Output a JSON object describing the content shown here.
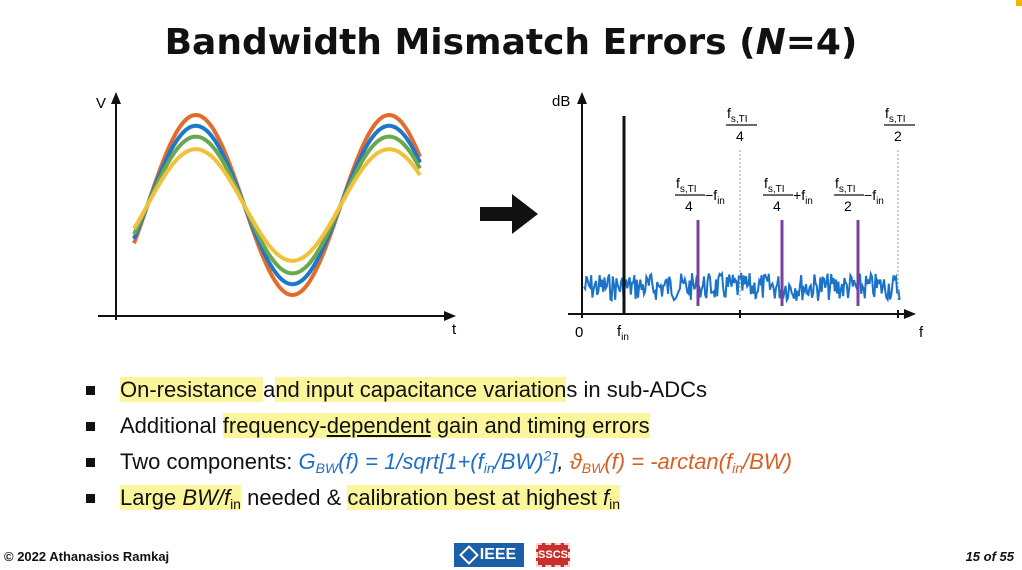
{
  "slide": {
    "title": "Bandwidth Mismatch Errors (N=4)",
    "title_parts": [
      "Bandwidth Mismatch Errors (",
      "N",
      "=4)"
    ]
  },
  "left_plot": {
    "y_axis_label": "V",
    "x_axis_label": "t",
    "series_colors": [
      "#e36b2c",
      "#1f77c8",
      "#6aa84f",
      "#f0c23c"
    ],
    "amplitudes": [
      1.0,
      0.88,
      0.76,
      0.62
    ]
  },
  "arrow_icon": "right-arrow-icon",
  "right_plot": {
    "y_axis_label": "dB",
    "x_axis_label": "f",
    "origin_label": "0",
    "fin_label": {
      "main": "f",
      "sub": "in"
    },
    "noise_color": "#1a73c8",
    "spur_color": "#7b3f9e",
    "signal_color": "#111111",
    "markers": {
      "quarter": {
        "num": "f",
        "num_sub": "s,TI",
        "den": "4"
      },
      "half": {
        "num": "f",
        "num_sub": "s,TI",
        "den": "2"
      }
    },
    "spurs": [
      {
        "num": "f",
        "num_sub": "s,TI",
        "den": "4",
        "op": "−",
        "term": "f",
        "term_sub": "in"
      },
      {
        "num": "f",
        "num_sub": "s,TI",
        "den": "4",
        "op": "+",
        "term": "f",
        "term_sub": "in"
      },
      {
        "num": "f",
        "num_sub": "s,TI",
        "den": "2",
        "op": "−",
        "term": "f",
        "term_sub": "in"
      }
    ]
  },
  "bullets": {
    "b1": {
      "hl1": "On-resistance ",
      "mid": "a",
      "hl2": "nd input capacitance variation",
      "rest": "s in sub-ADCs"
    },
    "b2": {
      "pre": "Additional ",
      "hl1": "frequency-",
      "ul": "dependent",
      "hl2": " gain and timing errors"
    },
    "b3": {
      "pre": "Two components: ",
      "g": "G",
      "g_sub": "BW",
      "g_expr1": "(f) = 1/sqrt[1+(f",
      "g_sub2": "in",
      "g_expr2": "/BW)",
      "g_sup": "2",
      "g_expr3": "]",
      "comma": ", ",
      "th": "ϑ",
      "th_sub": "BW",
      "th_expr1": "(f) = -arctan(f",
      "th_sub2": "in",
      "th_expr2": "/BW)"
    },
    "b4": {
      "hl1": "Large ",
      "bw": "BW/f",
      "bw_sub": "in",
      "mid": " needed & ",
      "hl2": "calibration best at highest ",
      "f": "f",
      "f_sub": "in"
    }
  },
  "footer": {
    "copyright": "© 2022 Athanasios Ramkaj",
    "page": "15 of 55",
    "ieee_label": "IEEE",
    "sscs_label": "SSCS",
    "ieee_icon": "ieee-logo-icon",
    "sscs_icon": "sscs-logo-icon"
  }
}
